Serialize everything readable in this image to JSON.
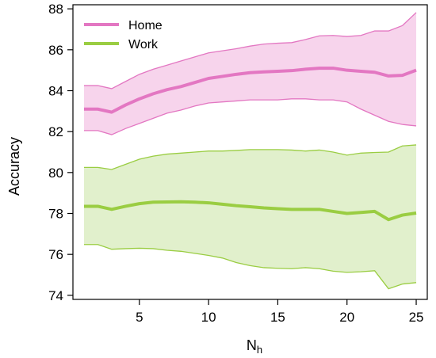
{
  "chart_data": {
    "type": "line",
    "title": "",
    "xlabel": "N",
    "xlabel_subscript": "h",
    "ylabel": "Accuracy",
    "xlim": [
      0.2,
      25.8
    ],
    "ylim": [
      73.8,
      88.2
    ],
    "xticks": [
      5,
      10,
      15,
      20,
      25
    ],
    "yticks": [
      74,
      76,
      78,
      80,
      82,
      84,
      86,
      88
    ],
    "grid": false,
    "legend_position": "top-left",
    "x": [
      1,
      2,
      3,
      4,
      5,
      6,
      7,
      8,
      9,
      10,
      11,
      12,
      13,
      14,
      15,
      16,
      17,
      18,
      19,
      20,
      21,
      22,
      23,
      24,
      25
    ],
    "series": [
      {
        "name": "Home",
        "line_color": "#e377c2",
        "band_color": "#f7d4ec",
        "mean": [
          83.1,
          83.1,
          82.95,
          83.3,
          83.6,
          83.85,
          84.05,
          84.2,
          84.4,
          84.6,
          84.7,
          84.8,
          84.88,
          84.92,
          84.95,
          84.98,
          85.05,
          85.1,
          85.1,
          85.0,
          84.95,
          84.9,
          84.72,
          84.75,
          85.0
        ],
        "upper": [
          84.25,
          84.25,
          84.1,
          84.45,
          84.8,
          85.05,
          85.25,
          85.45,
          85.65,
          85.85,
          85.95,
          86.05,
          86.18,
          86.28,
          86.32,
          86.35,
          86.5,
          86.68,
          86.7,
          86.65,
          86.7,
          86.92,
          86.92,
          87.18,
          87.82
        ],
        "lower": [
          82.05,
          82.05,
          81.85,
          82.15,
          82.4,
          82.65,
          82.9,
          83.05,
          83.25,
          83.4,
          83.45,
          83.5,
          83.55,
          83.55,
          83.55,
          83.6,
          83.6,
          83.55,
          83.55,
          83.45,
          83.1,
          82.8,
          82.5,
          82.35,
          82.28
        ]
      },
      {
        "name": "Work",
        "line_color": "#9acd42",
        "band_color": "#e1f0cc",
        "mean": [
          78.35,
          78.35,
          78.2,
          78.35,
          78.48,
          78.55,
          78.56,
          78.57,
          78.55,
          78.52,
          78.45,
          78.38,
          78.33,
          78.27,
          78.23,
          78.2,
          78.2,
          78.2,
          78.1,
          78.0,
          78.05,
          78.1,
          77.7,
          77.92,
          78.02
        ],
        "upper": [
          80.25,
          80.25,
          80.15,
          80.4,
          80.65,
          80.8,
          80.9,
          80.95,
          81.0,
          81.05,
          81.05,
          81.08,
          81.12,
          81.12,
          81.12,
          81.1,
          81.05,
          81.1,
          81.0,
          80.85,
          80.95,
          80.98,
          81.0,
          81.3,
          81.35
        ],
        "lower": [
          76.48,
          76.48,
          76.25,
          76.28,
          76.3,
          76.28,
          76.2,
          76.15,
          76.05,
          75.95,
          75.82,
          75.6,
          75.45,
          75.35,
          75.32,
          75.3,
          75.35,
          75.3,
          75.18,
          75.12,
          75.15,
          75.2,
          74.32,
          74.55,
          74.62
        ]
      }
    ]
  }
}
